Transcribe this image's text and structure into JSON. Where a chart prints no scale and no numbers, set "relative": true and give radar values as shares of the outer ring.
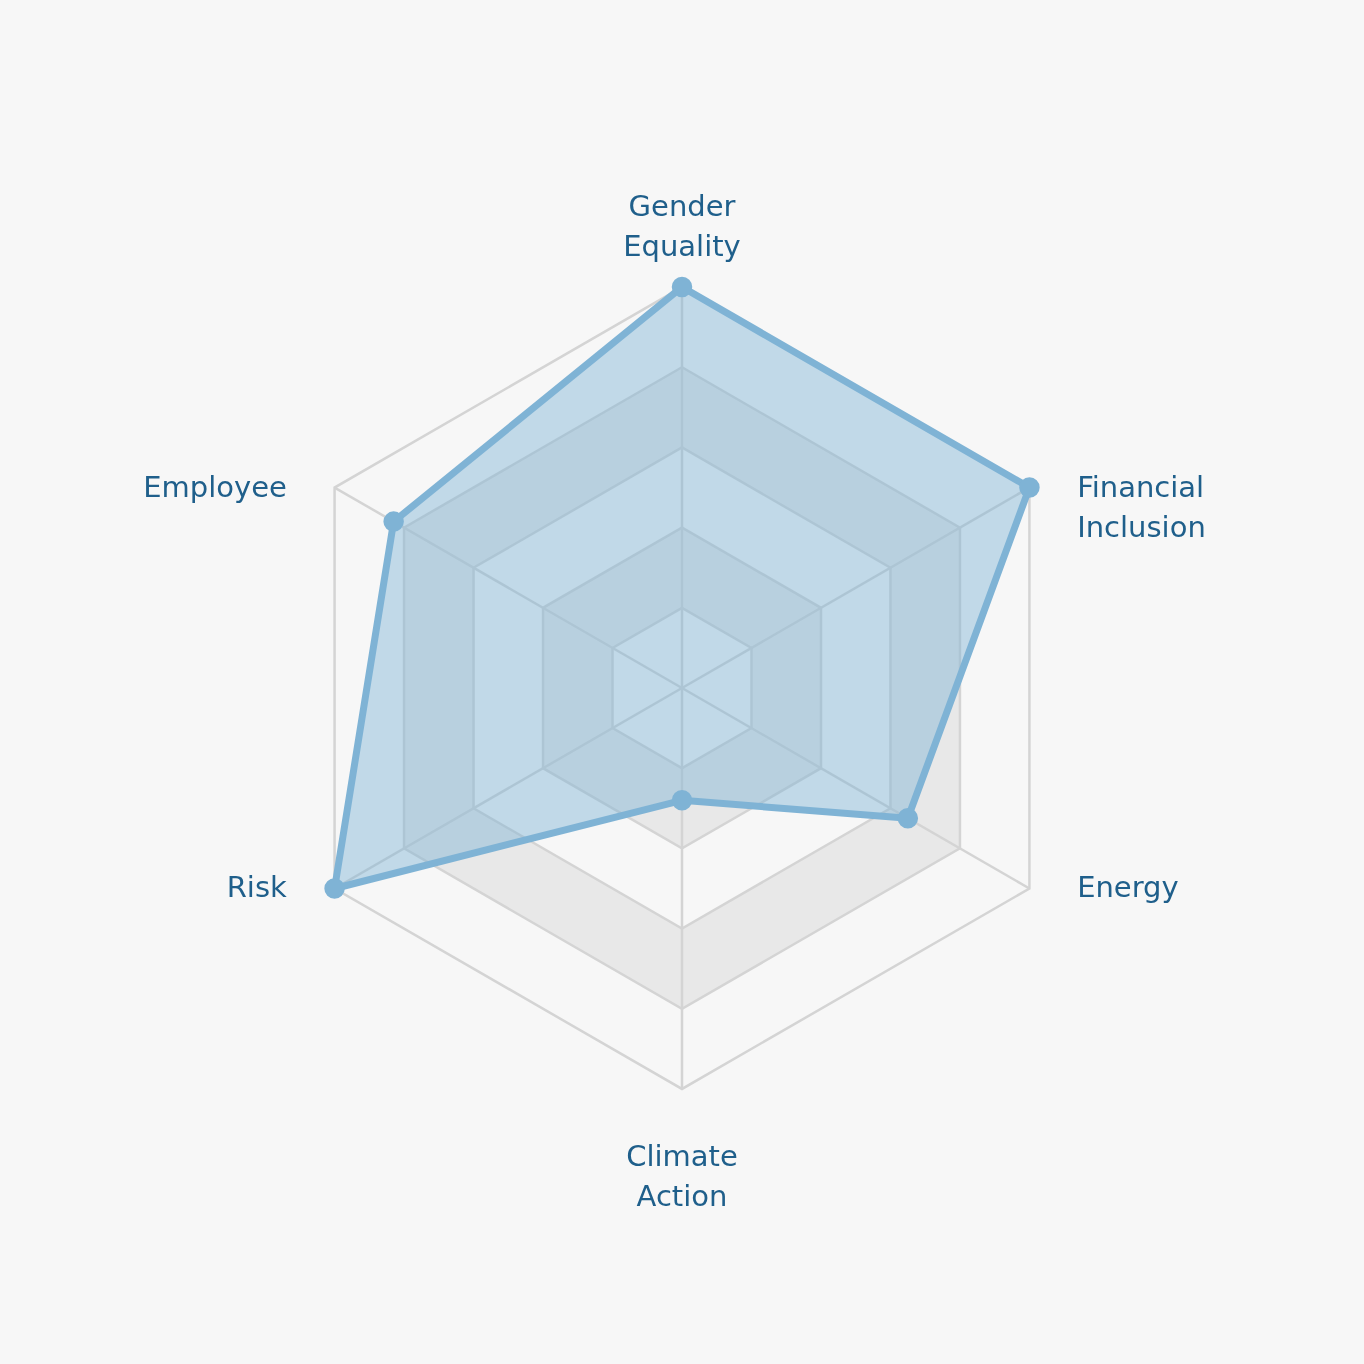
{
  "chart_data": {
    "type": "radar",
    "relative": true,
    "categories": [
      "Gender Equality",
      "Financial Inclusion",
      "Energy",
      "Climate Action",
      "Risk",
      "Employee"
    ],
    "series": [
      {
        "color": "#7fb3d5",
        "values": [
          1.0,
          1.0,
          0.65,
          0.28,
          1.0,
          0.83
        ]
      }
    ],
    "grid": true,
    "marker": "circle"
  }
}
